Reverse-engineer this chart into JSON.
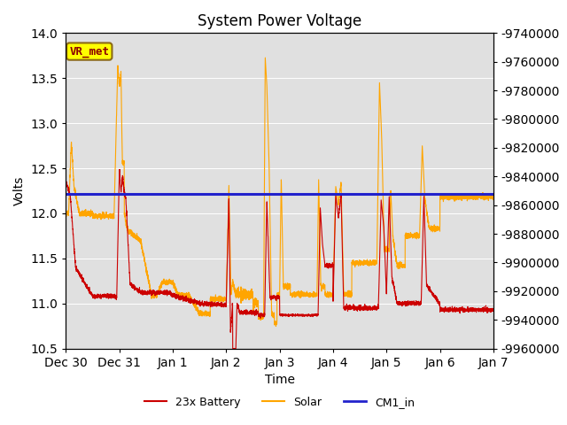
{
  "title": "System Power Voltage",
  "xlabel": "Time",
  "ylabel": "Volts",
  "ylim": [
    10.5,
    14.0
  ],
  "yticks": [
    10.5,
    11.0,
    11.5,
    12.0,
    12.5,
    13.0,
    13.5,
    14.0
  ],
  "right_ylim": [
    -9960000,
    -9740000
  ],
  "right_yticks": [
    -9960000,
    -9940000,
    -9920000,
    -9900000,
    -9880000,
    -9860000,
    -9840000,
    -9820000,
    -9800000,
    -9780000,
    -9760000,
    -9740000
  ],
  "xlim_start": 0,
  "xlim_end": 8,
  "xtick_positions": [
    0,
    1,
    2,
    3,
    4,
    5,
    6,
    7,
    8
  ],
  "xtick_labels": [
    "Dec 30",
    "Dec 31",
    "Jan 1",
    "Jan 2",
    "Jan 3",
    "Jan 4",
    "Jan 5",
    "Jan 6",
    "Jan 7"
  ],
  "cm1_value": 12.22,
  "battery_color": "#CC0000",
  "solar_color": "#FFA500",
  "cm1_color": "#2222CC",
  "plot_bg_color": "#E0E0E0",
  "fig_bg_color": "#FFFFFF",
  "vr_met_label": "VR_met",
  "vr_met_bg": "#FFFF00",
  "vr_met_border": "#8B6914",
  "vr_met_text_color": "#8B0000",
  "legend_labels": [
    "23x Battery",
    "Solar",
    "CM1_in"
  ],
  "legend_colors": [
    "#CC0000",
    "#FFA500",
    "#2222CC"
  ],
  "grid_color": "#FFFFFF",
  "figsize": [
    6.4,
    4.8
  ],
  "dpi": 100
}
